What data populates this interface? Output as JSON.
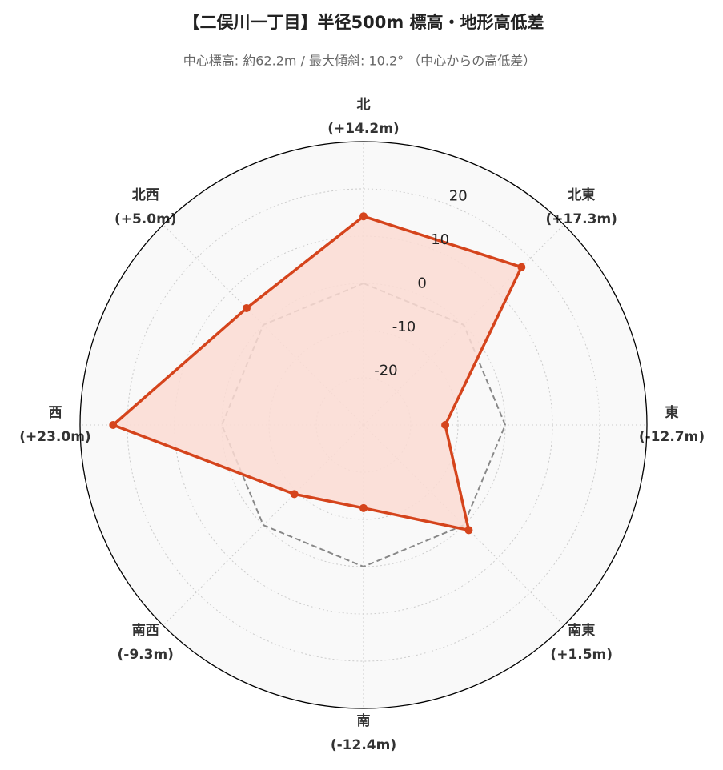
{
  "chart_data": {
    "type": "radar",
    "title": "【二俣川一丁目】半径500m 標高・地形高低差",
    "subtitle": "中心標高: 約62.2m / 最大傾斜: 10.2° （中心からの高低差）",
    "categories": [
      "北",
      "北東",
      "東",
      "南東",
      "南",
      "南西",
      "西",
      "北西"
    ],
    "values": [
      14.2,
      17.3,
      -12.7,
      1.5,
      -12.4,
      -9.3,
      23.0,
      5.0
    ],
    "value_labels": [
      "(+14.2m)",
      "(+17.3m)",
      "(-12.7m)",
      "(+1.5m)",
      "(-12.4m)",
      "(-9.3m)",
      "(+23.0m)",
      "(+5.0m)"
    ],
    "color": "#d5441c",
    "fill_color": "#fcdcd4",
    "reference_line": 0,
    "ylim": [
      -30,
      30
    ],
    "yticks": [
      -20,
      -10,
      0,
      10,
      20
    ],
    "grid": true
  }
}
